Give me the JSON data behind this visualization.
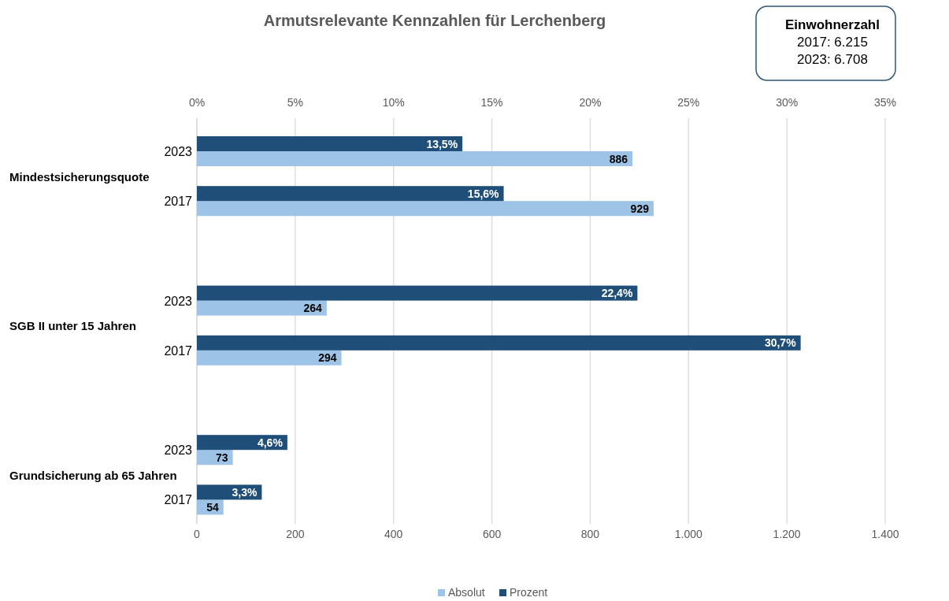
{
  "chart_data": {
    "type": "bar",
    "orientation": "horizontal",
    "title": "Armutsrelevante Kennzahlen für Lerchenberg",
    "categories": [
      "2023",
      "2017",
      "2023",
      "2017",
      "2023",
      "2017"
    ],
    "series": [
      {
        "name": "Absolut",
        "color": "#9dc3e6",
        "values": [
          886,
          929,
          264,
          294,
          73,
          54
        ],
        "value_labels": [
          "886",
          "929",
          "264",
          "294",
          "73",
          "54"
        ]
      },
      {
        "name": "Prozent",
        "color": "#1f4e79",
        "axis": "x2",
        "values": [
          13.5,
          15.6,
          22.4,
          30.7,
          4.6,
          3.3
        ],
        "value_labels": [
          "13,5%",
          "15,6%",
          "22,4%",
          "30,7%",
          "4,6%",
          "3,3%"
        ]
      }
    ],
    "xlim": [
      0,
      1400
    ],
    "xticks": [
      0,
      200,
      400,
      600,
      800,
      {
        "value": 1000,
        "label": "1.000"
      },
      {
        "value": 1200,
        "label": "1.200"
      },
      {
        "value": 1400,
        "label": "1.400"
      }
    ],
    "x2lim": [
      0,
      35
    ],
    "x2ticks": [
      {
        "value": 0,
        "label": "0%"
      },
      {
        "value": 5,
        "label": "5%"
      },
      {
        "value": 10,
        "label": "10%"
      },
      {
        "value": 15,
        "label": "15%"
      },
      {
        "value": 20,
        "label": "20%"
      },
      {
        "value": 25,
        "label": "25%"
      },
      {
        "value": 30,
        "label": "30%"
      },
      {
        "value": 35,
        "label": "35%"
      }
    ],
    "grid": "x",
    "legend": "bottom",
    "annotations": [
      "Mindestsicherungsquote",
      "SGB II unter 15 Jahren",
      "Grundsicherung ab 65 Jahren",
      "Einwohnerzahl",
      "2017: 6.215",
      "2023: 6.708"
    ]
  }
}
